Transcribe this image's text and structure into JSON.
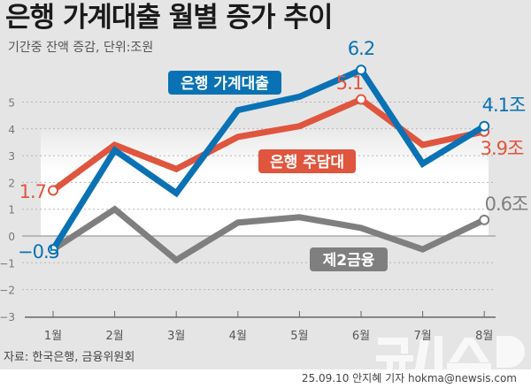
{
  "header": {
    "title": "은행 가계대출 월별 증가 추이",
    "subtitle": "기간중 잔액 증감, 단위:조원"
  },
  "footer": {
    "source": "자료: 한국은행, 금융위원회",
    "credit": "25.09.10 안지혜 기자 hokma@newsis.com",
    "logo": "뉴시스"
  },
  "chart_data": {
    "type": "line",
    "title": "은행 가계대출 월별 증가 추이",
    "ylabel": "조원",
    "ylim": [
      -3,
      6.5
    ],
    "yticks": [
      5,
      4,
      3,
      2,
      1,
      0,
      -1,
      -2,
      -3
    ],
    "categories": [
      "1월",
      "2월",
      "3월",
      "4월",
      "5월",
      "6월",
      "7월",
      "8월"
    ],
    "series": [
      {
        "name": "제2금융",
        "color": "#7f7f7f",
        "values": [
          -0.5,
          1.0,
          -0.9,
          0.5,
          0.7,
          0.3,
          -0.5,
          0.6
        ],
        "labels": [
          {
            "index": 7,
            "text": "0.6조"
          }
        ]
      },
      {
        "name": "은행 주담대",
        "color": "#e0553e",
        "values": [
          1.7,
          3.4,
          2.5,
          3.7,
          4.1,
          5.1,
          3.4,
          3.9
        ],
        "labels": [
          {
            "index": 0,
            "text": "1.7"
          },
          {
            "index": 5,
            "text": "5.1"
          },
          {
            "index": 7,
            "text": "3.9조"
          }
        ]
      },
      {
        "name": "은행 가계대출",
        "color": "#0a72b4",
        "values": [
          -0.5,
          3.2,
          1.6,
          4.7,
          5.2,
          6.2,
          2.7,
          4.1
        ],
        "labels": [
          {
            "index": 0,
            "text": "−0.5"
          },
          {
            "index": 5,
            "text": "6.2"
          },
          {
            "index": 7,
            "text": "4.1조"
          }
        ]
      }
    ]
  }
}
